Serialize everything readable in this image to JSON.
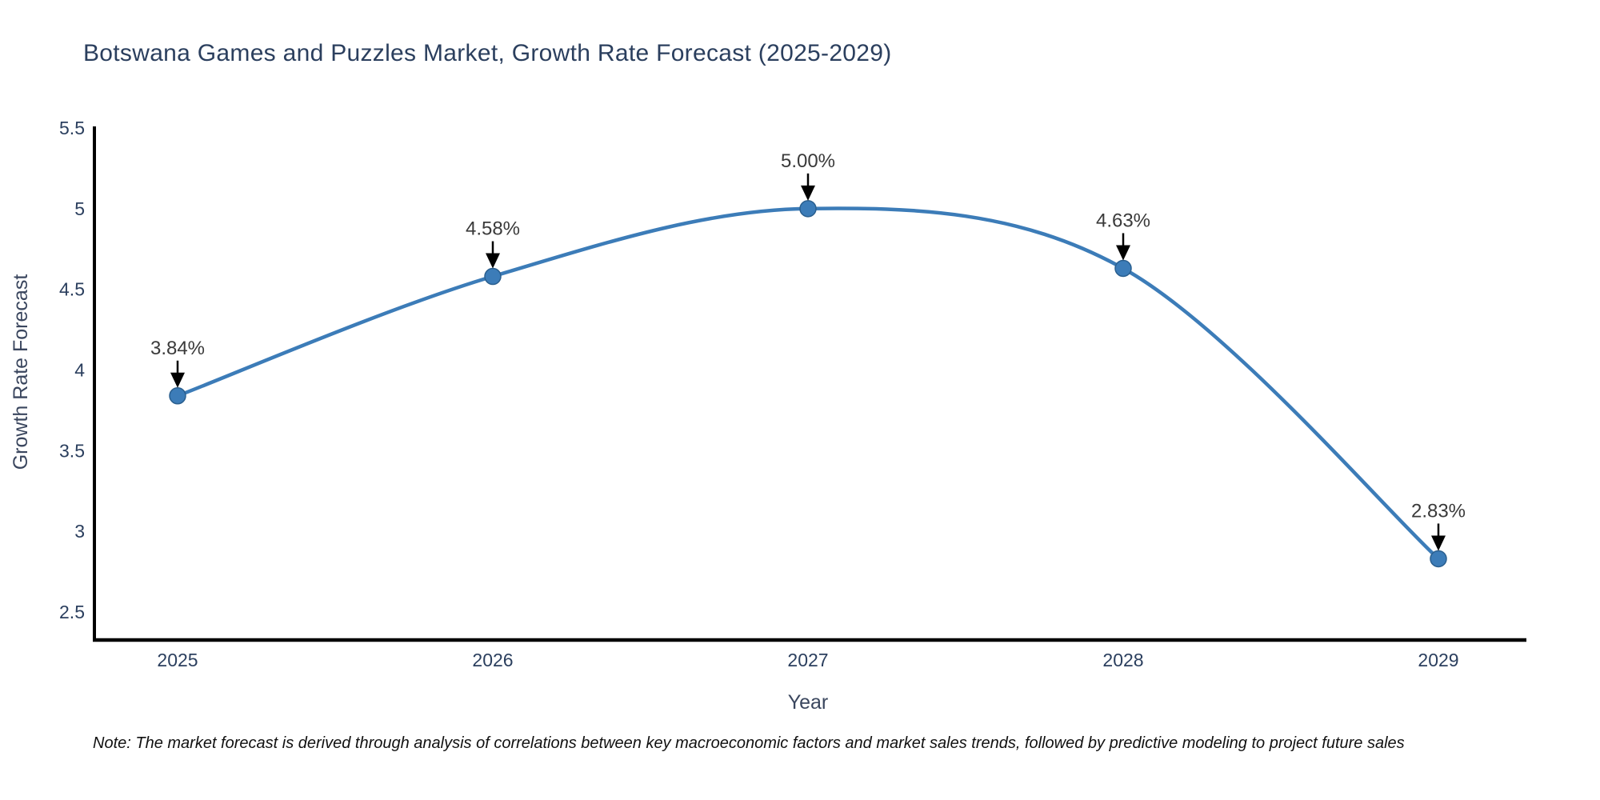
{
  "note": "Note: The market forecast is derived through analysis of correlations between key macroeconomic factors and market sales trends, followed by predictive modeling to project future sales",
  "chart_data": {
    "type": "line",
    "title": "Botswana Games and Puzzles Market, Growth Rate Forecast (2025-2029)",
    "xlabel": "Year",
    "ylabel": "Growth Rate Forecast",
    "x": [
      2025,
      2026,
      2027,
      2028,
      2029
    ],
    "y": [
      3.84,
      4.58,
      5.0,
      4.63,
      2.83
    ],
    "point_labels": [
      "3.84%",
      "4.58%",
      "5.00%",
      "4.63%",
      "2.83%"
    ],
    "x_tick_labels": [
      "2025",
      "2026",
      "2027",
      "2028",
      "2029"
    ],
    "y_tick_values": [
      5.5,
      5,
      4.5,
      4,
      3.5,
      3,
      2.5
    ],
    "y_tick_labels": [
      "5.5",
      "5",
      "4.5",
      "4",
      "3.5",
      "3",
      "2.5"
    ],
    "xlim": [
      2024.74,
      2029.28
    ],
    "ylim": [
      2.33,
      5.5
    ],
    "line_shape": "spline",
    "grid": false,
    "legend": false,
    "colors": {
      "line": "#3c7cb8",
      "marker_fill": "#3c7cb8",
      "marker_edge": "#2a5f8f",
      "axis": "#000000",
      "tick_text": "#2b3f5e",
      "axis_title_text": "#3a465e",
      "annotation_text": "#3a3a3a",
      "annotation_arrow": "#000000"
    }
  }
}
